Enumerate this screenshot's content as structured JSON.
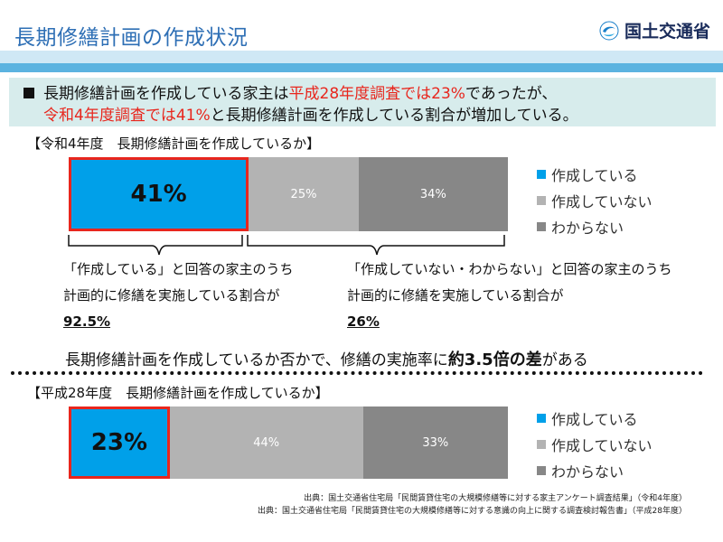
{
  "header": {
    "title": "長期修繕計画の作成状況",
    "logo_text": "国土交通省",
    "logo_icon": "mlit-swirl-icon"
  },
  "summary": {
    "line1_prefix": "長期修繕計画を作成している家主は",
    "line1_red": "平成28年度調査では23%",
    "line1_suffix": "であったが、",
    "line2_red": "令和4年度調査では41%",
    "line2_suffix": "と長期修繕計画を作成している割合が増加している。"
  },
  "section1": {
    "title": "【令和4年度　長期修繕計画を作成しているか】"
  },
  "section2": {
    "title": "【平成28年度　長期修繕計画を作成しているか】"
  },
  "notes": {
    "left_line1": "「作成している」と回答の家主のうち",
    "left_line2": "計画的に修繕を実施している割合が",
    "left_pct": "92.5%",
    "right_line1": "「作成していない・わからない」と回答の家主のうち",
    "right_line2": "計画的に修繕を実施している割合が",
    "right_pct": "26%"
  },
  "conclusion": {
    "prefix": "長期修繕計画を作成しているか否かで、修繕の実施率に",
    "bold": "約3.5倍の差",
    "suffix": "がある"
  },
  "sources": {
    "line1": "出典：国土交通省住宅局「民間賃貸住宅の大規模修繕等に対する家主アンケート調査結果」（令和4年度）",
    "line2": "出典：国土交通省住宅局「民間賃貸住宅の大規模修繕等に対する意識の向上に関する調査検討報告書」（平成28年度）"
  },
  "colors": {
    "created": "#00a0e9",
    "not_created": "#b3b3b3",
    "unknown": "#878787",
    "highlight_border": "#e8261d"
  },
  "chart_data": [
    {
      "type": "bar",
      "orientation": "horizontal-stacked-100",
      "title": "【令和4年度　長期修繕計画を作成しているか】",
      "categories": [
        "作成している",
        "作成していない",
        "わからない"
      ],
      "values": [
        41,
        25,
        34
      ],
      "labels": [
        "41%",
        "25%",
        "34%"
      ],
      "legend": [
        "作成している",
        "作成していない",
        "わからない"
      ],
      "legend_position": "right"
    },
    {
      "type": "bar",
      "orientation": "horizontal-stacked-100",
      "title": "【平成28年度　長期修繕計画を作成しているか】",
      "categories": [
        "作成している",
        "作成していない",
        "わからない"
      ],
      "values": [
        23,
        44,
        33
      ],
      "labels": [
        "23%",
        "44%",
        "33%"
      ],
      "legend": [
        "作成している",
        "作成していない",
        "わからない"
      ],
      "legend_position": "right"
    }
  ]
}
